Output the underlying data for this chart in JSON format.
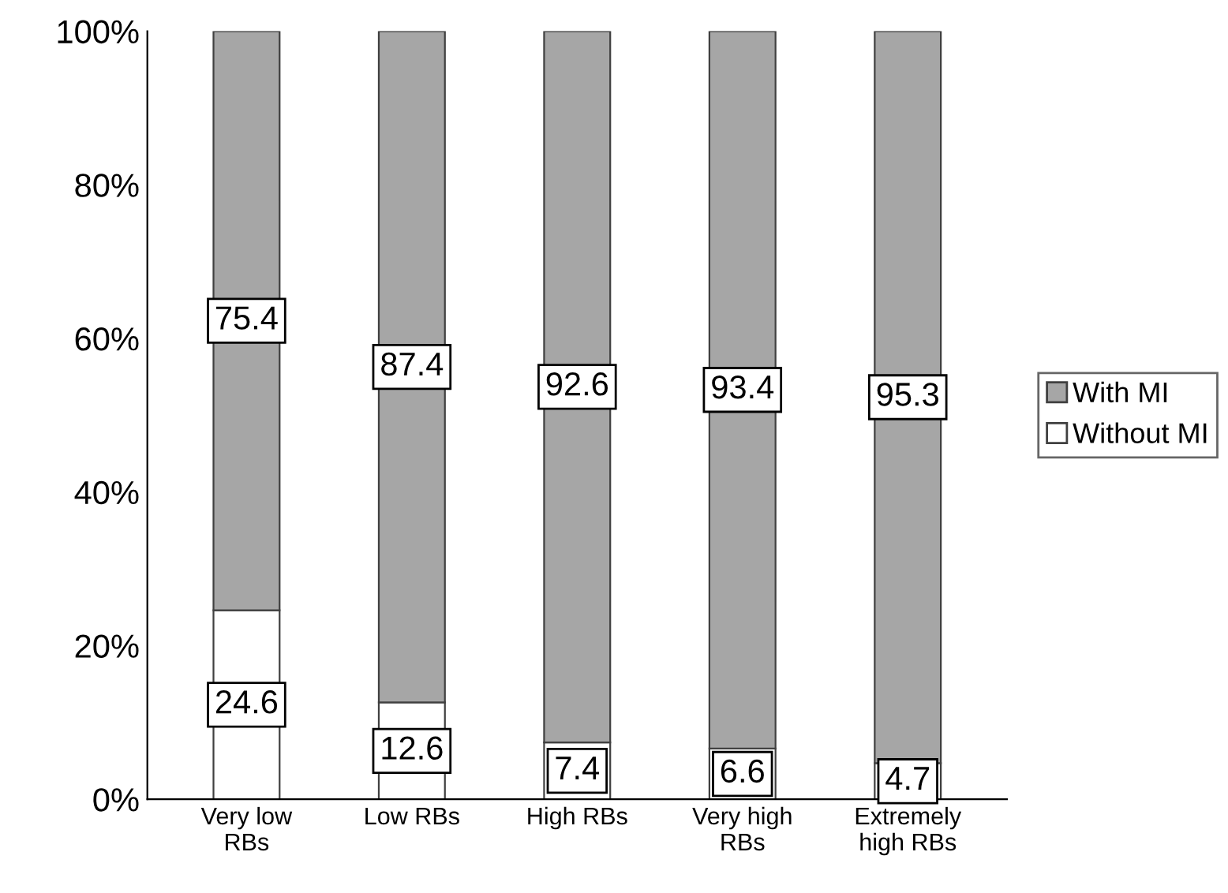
{
  "chart_data": {
    "type": "bar",
    "stacked": true,
    "categories": [
      "Very low\nRBs",
      "Low RBs",
      "High RBs",
      "Very high\nRBs",
      "Extremely\nhigh RBs"
    ],
    "series": [
      {
        "name": "Without MI",
        "color": "#ffffff",
        "values": [
          24.6,
          12.6,
          7.4,
          6.6,
          4.7
        ]
      },
      {
        "name": "With MI",
        "color": "#a6a6a6",
        "values": [
          75.4,
          87.4,
          92.6,
          93.4,
          95.3
        ]
      }
    ],
    "ylim": [
      0,
      100
    ],
    "yticks": [
      {
        "value": 0,
        "label": "0%"
      },
      {
        "value": 20,
        "label": "20%"
      },
      {
        "value": 40,
        "label": "40%"
      },
      {
        "value": 60,
        "label": "60%"
      },
      {
        "value": 80,
        "label": "80%"
      },
      {
        "value": 100,
        "label": "100%"
      }
    ],
    "data_labels": true,
    "grid": false,
    "legend": "right"
  }
}
